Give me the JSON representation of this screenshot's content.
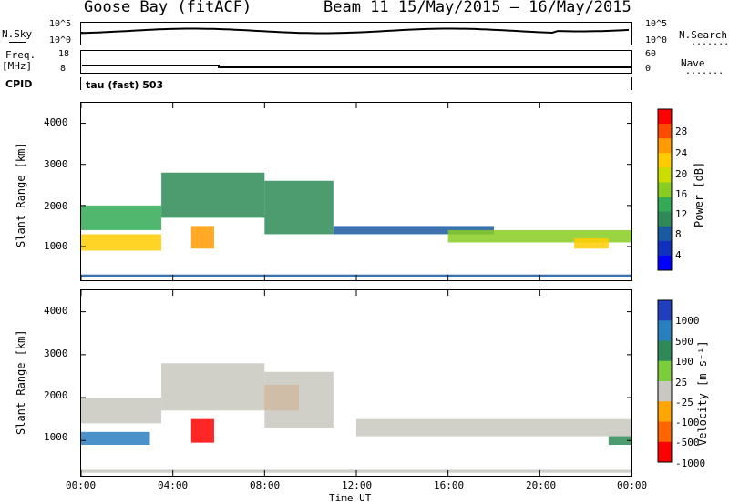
{
  "header": {
    "station": "Goose Bay (fitACF)",
    "beam_info": "Beam 11  15/May/2015 – 16/May/2015",
    "cpid_label": "CPID",
    "cpid_value": "tau (fast) 503"
  },
  "top_panels": {
    "nsky_label": "N.Sky",
    "nsky_ticks": [
      "10^5",
      "10^0"
    ],
    "nsearch_label": "N.Search",
    "nsearch_ticks": [
      "10^5",
      "10^0"
    ],
    "freq_label": "Freq.",
    "freq_unit": "[MHz]",
    "freq_ticks": [
      "18",
      "8"
    ],
    "nave_label": "Nave",
    "nave_ticks": [
      "60",
      "0"
    ],
    "dots": "......."
  },
  "axes": {
    "ylabel": "Slant Range [km]",
    "yticks": [
      "4000",
      "3000",
      "2000",
      "1000"
    ],
    "xlabel": "Time UT",
    "xticks": [
      "00:00",
      "04:00",
      "08:00",
      "12:00",
      "16:00",
      "20:00",
      "00:00"
    ]
  },
  "power_colorbar": {
    "label": "Power [dB]",
    "ticks": [
      "28",
      "24",
      "20",
      "16",
      "12",
      "8",
      "4"
    ],
    "colors": [
      "#ff0000",
      "#ff4b00",
      "#ff9a00",
      "#ffcc00",
      "#ccdd00",
      "#88cc22",
      "#33aa55",
      "#2e8b57",
      "#1a5aa0",
      "#1030c0",
      "#0000ff"
    ]
  },
  "velocity_colorbar": {
    "label": "Velocity [m s⁻¹]",
    "ticks": [
      "1000",
      "500",
      "100",
      "25",
      "-25",
      "-100",
      "-500",
      "-1000"
    ],
    "colors": [
      "#1f3fbf",
      "#2a7fbf",
      "#2e8b57",
      "#7ccd3c",
      "#c8c8c0",
      "#ffa500",
      "#ff6600",
      "#ff0000"
    ]
  },
  "chart_data": {
    "type": "heatmap",
    "title": "Goose Bay (fitACF)",
    "xlabel": "Time UT",
    "ylabel": "Slant Range [km]",
    "xlim_hours": [
      0,
      24
    ],
    "ylim_km": [
      180,
      4500
    ],
    "power_bands": [
      {
        "t": [
          0.0,
          24.0
        ],
        "r": [
          250,
          320
        ],
        "power_db": 5
      },
      {
        "t": [
          0.0,
          3.5
        ],
        "r": [
          900,
          1300
        ],
        "power_db": 22
      },
      {
        "t": [
          0.0,
          3.5
        ],
        "r": [
          1400,
          2000
        ],
        "power_db": 12
      },
      {
        "t": [
          3.5,
          8.0
        ],
        "r": [
          1700,
          2800
        ],
        "power_db": 10
      },
      {
        "t": [
          4.8,
          5.8
        ],
        "r": [
          950,
          1500
        ],
        "power_db": 24
      },
      {
        "t": [
          8.0,
          11.0
        ],
        "r": [
          1300,
          2600
        ],
        "power_db": 10
      },
      {
        "t": [
          11.0,
          18.0
        ],
        "r": [
          1300,
          1500
        ],
        "power_db": 6
      },
      {
        "t": [
          16.0,
          24.0
        ],
        "r": [
          1100,
          1400
        ],
        "power_db": 16
      },
      {
        "t": [
          21.5,
          23.0
        ],
        "r": [
          950,
          1200
        ],
        "power_db": 22
      }
    ],
    "velocity_bands": [
      {
        "t": [
          0.0,
          24.0
        ],
        "r": [
          250,
          320
        ],
        "velocity": 0
      },
      {
        "t": [
          0.0,
          3.0
        ],
        "r": [
          900,
          1200
        ],
        "velocity": 300
      },
      {
        "t": [
          0.0,
          3.5
        ],
        "r": [
          1400,
          2000
        ],
        "velocity": -20
      },
      {
        "t": [
          3.5,
          8.0
        ],
        "r": [
          1700,
          2800
        ],
        "velocity": 0
      },
      {
        "t": [
          4.8,
          5.8
        ],
        "r": [
          950,
          1500
        ],
        "velocity": -300
      },
      {
        "t": [
          8.0,
          9.5
        ],
        "r": [
          1700,
          2300
        ],
        "velocity": -200
      },
      {
        "t": [
          8.0,
          11.0
        ],
        "r": [
          1300,
          2600
        ],
        "velocity": 0
      },
      {
        "t": [
          12.0,
          24.0
        ],
        "r": [
          1100,
          1500
        ],
        "velocity": 0
      },
      {
        "t": [
          23.0,
          24.0
        ],
        "r": [
          900,
          1100
        ],
        "velocity": 80
      }
    ]
  }
}
